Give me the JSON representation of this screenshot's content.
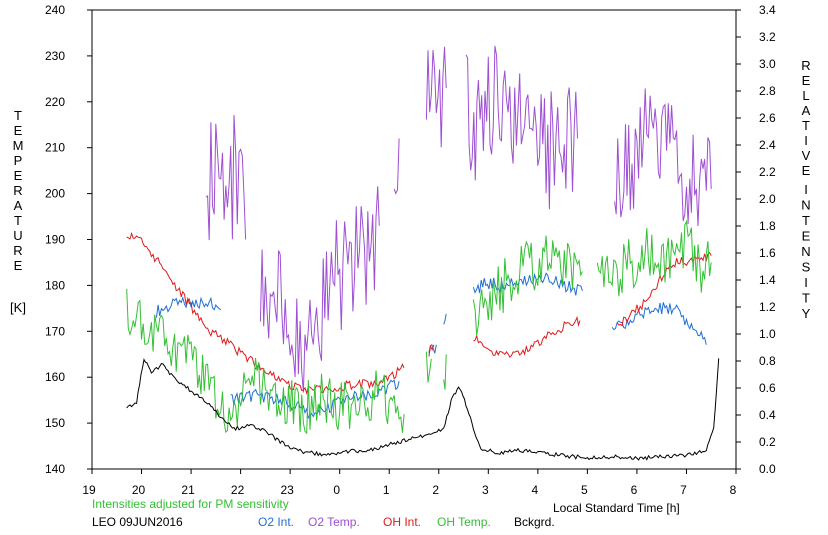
{
  "chart_data": {
    "type": "line",
    "x_axis": {
      "min": 19,
      "max": 32,
      "tick_values": [
        19,
        20,
        21,
        22,
        23,
        24,
        25,
        26,
        27,
        28,
        29,
        30,
        31,
        32
      ],
      "tick_labels": [
        "19",
        "20",
        "21",
        "22",
        "23",
        "0",
        "1",
        "2",
        "3",
        "4",
        "5",
        "6",
        "7",
        "8"
      ],
      "label": "Local Standard Time [h]"
    },
    "y_left": {
      "min": 140,
      "max": 240,
      "ticks": [
        "140",
        "150",
        "160",
        "170",
        "180",
        "190",
        "200",
        "210",
        "220",
        "230",
        "240"
      ],
      "label_letters": [
        "T",
        "E",
        "M",
        "P",
        "E",
        "R",
        "A",
        "T",
        "U",
        "R",
        "E"
      ],
      "unit": "[K]"
    },
    "y_right": {
      "min": 0,
      "max": 3.4,
      "ticks": [
        "0.0",
        "0.2",
        "0.4",
        "0.6",
        "0.8",
        "1.0",
        "1.2",
        "1.4",
        "1.6",
        "1.8",
        "2.0",
        "2.2",
        "2.4",
        "2.6",
        "2.8",
        "3.0",
        "3.2",
        "3.4"
      ],
      "label_letters": [
        "R",
        "E",
        "L",
        "A",
        "T",
        "I",
        "V",
        "E",
        "I",
        "N",
        "T",
        "E",
        "N",
        "S",
        "I",
        "T",
        "Y"
      ]
    },
    "note": "Intensities adjusted for PM sensitivity",
    "station_date": "LEO 09JUN2016",
    "series": [
      {
        "name": "O2 Int.",
        "axis": "right",
        "color": "#1f6fd6",
        "segments": [
          [
            [
              20.3,
              1.17
            ],
            [
              20.7,
              1.22
            ],
            [
              21.0,
              1.23
            ],
            [
              21.4,
              1.25
            ],
            [
              21.6,
              1.18
            ]
          ],
          [
            [
              21.8,
              0.52
            ],
            [
              22.4,
              0.55
            ],
            [
              22.8,
              0.5
            ],
            [
              23.0,
              0.48
            ],
            [
              23.4,
              0.42
            ],
            [
              23.8,
              0.46
            ],
            [
              24.2,
              0.53
            ],
            [
              24.6,
              0.55
            ],
            [
              25.0,
              0.6
            ],
            [
              25.2,
              0.65
            ]
          ],
          [
            [
              25.8,
              0.85
            ],
            [
              25.95,
              0.92
            ]
          ],
          [
            [
              26.1,
              1.1
            ],
            [
              26.15,
              1.15
            ]
          ],
          [
            [
              26.7,
              1.32
            ],
            [
              26.95,
              1.38
            ],
            [
              27.3,
              1.35
            ],
            [
              27.7,
              1.4
            ],
            [
              28.1,
              1.42
            ],
            [
              28.5,
              1.36
            ],
            [
              28.9,
              1.32
            ]
          ],
          [
            [
              29.5,
              1.03
            ],
            [
              29.9,
              1.1
            ],
            [
              30.3,
              1.18
            ],
            [
              30.7,
              1.2
            ],
            [
              31.1,
              1.07
            ],
            [
              31.4,
              0.92
            ]
          ]
        ]
      },
      {
        "name": "O2 Temp.",
        "axis": "left",
        "color": "#9e4fd3",
        "segments": [
          [
            [
              21.3,
              200
            ],
            [
              21.5,
              208
            ],
            [
              21.7,
              195
            ],
            [
              21.9,
              206
            ],
            [
              22.1,
              190
            ]
          ],
          [
            [
              22.4,
              180
            ],
            [
              22.6,
              178
            ],
            [
              22.8,
              174
            ],
            [
              23.0,
              170
            ],
            [
              23.3,
              165
            ],
            [
              23.6,
              176
            ],
            [
              23.9,
              181
            ],
            [
              24.2,
              185
            ],
            [
              24.5,
              188
            ],
            [
              24.8,
              193
            ]
          ],
          [
            [
              25.1,
              205
            ],
            [
              25.2,
              212
            ]
          ],
          [
            [
              25.75,
              220
            ],
            [
              25.95,
              222
            ],
            [
              26.15,
              223
            ]
          ],
          [
            [
              26.55,
              221
            ],
            [
              26.8,
              213
            ],
            [
              27.0,
              219
            ],
            [
              27.3,
              222
            ],
            [
              27.6,
              216
            ],
            [
              27.9,
              210
            ],
            [
              28.2,
              208
            ],
            [
              28.5,
              214
            ],
            [
              28.8,
              212
            ]
          ],
          [
            [
              29.55,
              207
            ],
            [
              29.8,
              208
            ],
            [
              30.1,
              210
            ],
            [
              30.4,
              212
            ],
            [
              30.7,
              210
            ],
            [
              31.0,
              205
            ],
            [
              31.3,
              200
            ],
            [
              31.5,
              201
            ]
          ]
        ]
      },
      {
        "name": "OH Int.",
        "axis": "right",
        "color": "#dd1c1c",
        "segments": [
          [
            [
              19.7,
              1.75
            ],
            [
              20.0,
              1.68
            ],
            [
              20.3,
              1.55
            ],
            [
              20.6,
              1.4
            ],
            [
              21.0,
              1.2
            ],
            [
              21.4,
              1.02
            ],
            [
              21.8,
              0.92
            ],
            [
              22.2,
              0.8
            ],
            [
              22.6,
              0.7
            ],
            [
              23.0,
              0.62
            ],
            [
              23.4,
              0.58
            ],
            [
              23.8,
              0.6
            ],
            [
              24.2,
              0.62
            ],
            [
              24.6,
              0.63
            ],
            [
              25.0,
              0.68
            ],
            [
              25.3,
              0.75
            ]
          ],
          [
            [
              25.8,
              0.85
            ],
            [
              25.9,
              0.92
            ]
          ],
          [
            [
              26.7,
              0.98
            ],
            [
              27.1,
              0.86
            ],
            [
              27.5,
              0.84
            ],
            [
              27.9,
              0.9
            ],
            [
              28.3,
              1.02
            ],
            [
              28.7,
              1.08
            ],
            [
              28.85,
              1.1
            ]
          ],
          [
            [
              29.6,
              1.05
            ],
            [
              29.9,
              1.15
            ],
            [
              30.2,
              1.25
            ],
            [
              30.5,
              1.42
            ],
            [
              30.8,
              1.53
            ],
            [
              31.2,
              1.55
            ],
            [
              31.5,
              1.58
            ]
          ]
        ]
      },
      {
        "name": "OH Temp.",
        "axis": "left",
        "color": "#33c033",
        "segments": [
          [
            [
              19.7,
              175
            ],
            [
              20.0,
              172
            ],
            [
              20.3,
              168
            ],
            [
              20.6,
              167
            ],
            [
              20.9,
              166
            ],
            [
              21.2,
              162
            ],
            [
              21.5,
              156
            ],
            [
              21.8,
              152
            ],
            [
              22.1,
              158
            ],
            [
              22.4,
              159
            ],
            [
              22.7,
              157
            ],
            [
              23.0,
              155
            ],
            [
              23.3,
              153
            ],
            [
              23.6,
              155
            ],
            [
              23.9,
              154
            ],
            [
              24.2,
              154
            ],
            [
              24.5,
              155
            ],
            [
              24.8,
              156
            ],
            [
              25.0,
              155
            ],
            [
              25.3,
              152
            ]
          ],
          [
            [
              25.75,
              160
            ],
            [
              25.85,
              164
            ]
          ],
          [
            [
              26.1,
              160
            ],
            [
              26.15,
              165
            ]
          ],
          [
            [
              26.7,
              174
            ],
            [
              27.0,
              176
            ],
            [
              27.4,
              181
            ],
            [
              27.8,
              184
            ],
            [
              28.2,
              186
            ],
            [
              28.6,
              184
            ],
            [
              28.9,
              183
            ]
          ],
          [
            [
              29.2,
              180
            ],
            [
              29.5,
              182
            ],
            [
              29.8,
              184
            ],
            [
              30.1,
              187
            ],
            [
              30.4,
              186
            ],
            [
              30.7,
              187
            ],
            [
              31.0,
              189
            ],
            [
              31.3,
              184
            ],
            [
              31.5,
              185
            ]
          ]
        ]
      },
      {
        "name": "Bckgrd.",
        "axis": "right",
        "color": "#000000",
        "segments": [
          [
            [
              19.7,
              0.45
            ],
            [
              19.9,
              0.5
            ],
            [
              20.05,
              0.82
            ],
            [
              20.2,
              0.7
            ],
            [
              20.4,
              0.78
            ],
            [
              20.7,
              0.65
            ],
            [
              21.0,
              0.58
            ],
            [
              21.3,
              0.5
            ],
            [
              21.6,
              0.38
            ],
            [
              21.9,
              0.3
            ],
            [
              22.2,
              0.32
            ],
            [
              22.5,
              0.28
            ],
            [
              22.8,
              0.2
            ],
            [
              23.1,
              0.14
            ],
            [
              23.4,
              0.12
            ],
            [
              23.8,
              0.1
            ],
            [
              24.2,
              0.13
            ],
            [
              24.6,
              0.14
            ],
            [
              25.0,
              0.18
            ],
            [
              25.4,
              0.22
            ],
            [
              25.8,
              0.26
            ],
            [
              26.1,
              0.3
            ],
            [
              26.25,
              0.5
            ],
            [
              26.4,
              0.62
            ],
            [
              26.55,
              0.48
            ],
            [
              26.7,
              0.3
            ],
            [
              26.85,
              0.15
            ],
            [
              27.2,
              0.12
            ],
            [
              27.6,
              0.14
            ],
            [
              28.0,
              0.12
            ],
            [
              28.5,
              0.1
            ],
            [
              29.0,
              0.08
            ],
            [
              29.5,
              0.09
            ],
            [
              30.0,
              0.08
            ],
            [
              30.5,
              0.09
            ],
            [
              31.0,
              0.1
            ],
            [
              31.4,
              0.14
            ],
            [
              31.55,
              0.3
            ],
            [
              31.65,
              0.82
            ]
          ]
        ]
      }
    ]
  }
}
